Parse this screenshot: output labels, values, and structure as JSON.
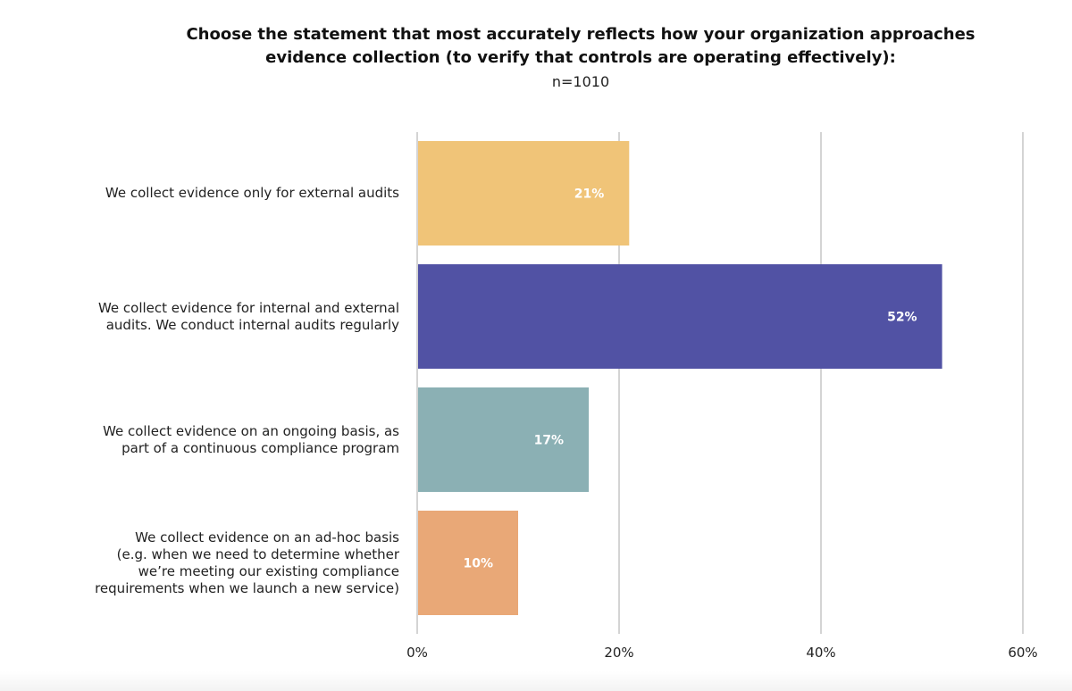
{
  "chart_data": {
    "type": "bar",
    "orientation": "horizontal",
    "title": "Choose the statement that most accurately reflects how your organization approaches evidence collection (to verify that controls are operating effectively):",
    "title_lines": [
      "Choose the statement that most accurately reflects how your organization approaches",
      "evidence collection (to verify that controls are operating effectively):"
    ],
    "subtitle": "n=1010",
    "categories": [
      "We collect evidence only for external audits",
      "We collect evidence for internal and external audits. We conduct internal audits regularly",
      "We collect evidence on an ongoing basis, as part of a continuous compliance program",
      "We collect evidence on an ad-hoc basis (e.g. when we need to determine whether we’re meeting our existing compliance requirements when we launch a new service)"
    ],
    "category_lines": [
      [
        "We collect evidence only for external audits"
      ],
      [
        "We collect evidence for internal and external",
        "audits. We conduct internal audits regularly"
      ],
      [
        "We collect evidence on an ongoing basis, as",
        "part of a continuous compliance program"
      ],
      [
        "We collect evidence on an ad-hoc basis",
        "(e.g. when we need to determine whether",
        "we’re meeting our existing compliance",
        "requirements when we launch a new service)"
      ]
    ],
    "values": [
      21,
      52,
      17,
      10
    ],
    "data_labels": [
      "21%",
      "52%",
      "17%",
      "10%"
    ],
    "colors": [
      "#F0C478",
      "#5152A4",
      "#8BB0B4",
      "#E9A877"
    ],
    "xlim": [
      0,
      60
    ],
    "xticks": [
      0,
      20,
      40,
      60
    ],
    "xtick_labels": [
      "0%",
      "20%",
      "40%",
      "60%"
    ],
    "grid": true,
    "xlabel": "",
    "ylabel": ""
  }
}
